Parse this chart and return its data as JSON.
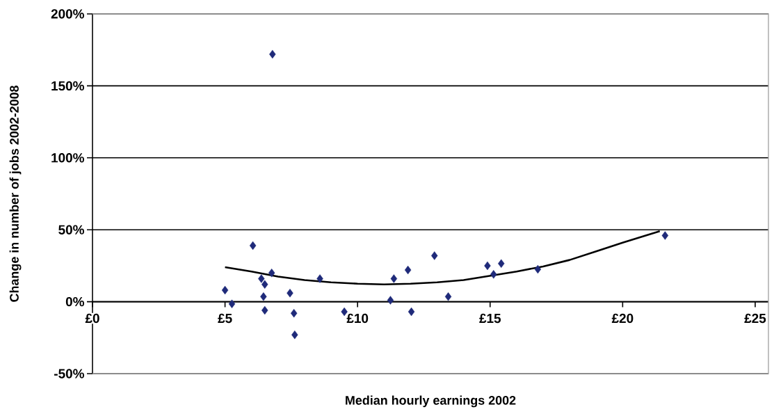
{
  "chart_data": {
    "type": "scatter",
    "xlabel": "Median hourly earnings 2002",
    "ylabel": "Change in number of jobs 2002-2008",
    "xlim": [
      0,
      25.5
    ],
    "ylim": [
      -50,
      200
    ],
    "xticks": [
      {
        "value": 0,
        "label": "£0"
      },
      {
        "value": 5,
        "label": "£5"
      },
      {
        "value": 10,
        "label": "£10"
      },
      {
        "value": 15,
        "label": "£15"
      },
      {
        "value": 20,
        "label": "£20"
      },
      {
        "value": 25,
        "label": "£25"
      }
    ],
    "yticks": [
      {
        "value": -50,
        "label": "-50%"
      },
      {
        "value": 0,
        "label": "0%"
      },
      {
        "value": 50,
        "label": "50%"
      },
      {
        "value": 100,
        "label": "100%"
      },
      {
        "value": 150,
        "label": "150%"
      },
      {
        "value": 200,
        "label": "200%"
      }
    ],
    "grid": "y",
    "marker": "diamond",
    "series": [
      {
        "color": "#1f2a7a",
        "x": [
          6.05,
          5.0,
          5.26,
          6.45,
          6.5,
          6.5,
          6.37,
          6.76,
          7.45,
          7.6,
          7.63,
          8.58,
          9.5,
          11.24,
          11.37,
          11.9,
          12.03,
          12.9,
          13.42,
          14.9,
          15.42,
          15.13,
          16.8,
          21.6,
          6.79
        ],
        "values": [
          39,
          8,
          -1.5,
          3.5,
          -6,
          12,
          16,
          20,
          6,
          -8,
          -23,
          16,
          -7,
          1,
          16,
          22,
          -7,
          32,
          3.5,
          25,
          26.5,
          19,
          22.5,
          46,
          172
        ]
      },
      {
        "type": "line",
        "color": "#000000",
        "marker": "none",
        "x": [
          5,
          6,
          7,
          8,
          9,
          10,
          11,
          12,
          13,
          14,
          15,
          16,
          17,
          18,
          19,
          20,
          21.4
        ],
        "values": [
          24,
          21,
          17.5,
          15,
          13.5,
          12.5,
          12,
          12.5,
          13.5,
          15,
          18,
          21,
          24.5,
          29,
          35,
          41,
          49
        ]
      }
    ]
  }
}
